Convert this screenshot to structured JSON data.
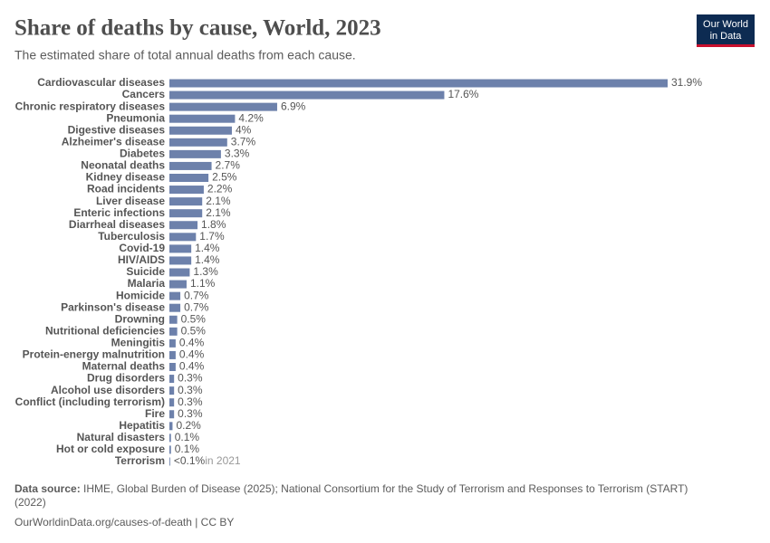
{
  "chart_data": {
    "type": "bar",
    "orientation": "horizontal",
    "title": "Share of deaths by cause, World, 2023",
    "subtitle": "The estimated share of total annual deaths from each cause.",
    "color": "#6d81ab",
    "categories": [
      "Cardiovascular diseases",
      "Cancers",
      "Chronic respiratory diseases",
      "Pneumonia",
      "Digestive diseases",
      "Alzheimer's disease",
      "Diabetes",
      "Neonatal deaths",
      "Kidney disease",
      "Road incidents",
      "Liver disease",
      "Enteric infections",
      "Diarrheal diseases",
      "Tuberculosis",
      "Covid-19",
      "HIV/AIDS",
      "Suicide",
      "Malaria",
      "Homicide",
      "Parkinson's disease",
      "Drowning",
      "Nutritional deficiencies",
      "Meningitis",
      "Protein-energy malnutrition",
      "Maternal deaths",
      "Drug disorders",
      "Alcohol use disorders",
      "Conflict (including terrorism)",
      "Fire",
      "Hepatitis",
      "Natural disasters",
      "Hot or cold exposure",
      "Terrorism"
    ],
    "values": [
      31.9,
      17.6,
      6.9,
      4.2,
      4,
      3.7,
      3.3,
      2.7,
      2.5,
      2.2,
      2.1,
      2.1,
      1.8,
      1.7,
      1.4,
      1.4,
      1.3,
      1.1,
      0.7,
      0.7,
      0.5,
      0.5,
      0.4,
      0.4,
      0.4,
      0.3,
      0.3,
      0.3,
      0.3,
      0.2,
      0.1,
      0.1,
      0.05
    ],
    "value_labels": [
      "31.9%",
      "17.6%",
      "6.9%",
      "4.2%",
      "4%",
      "3.7%",
      "3.3%",
      "2.7%",
      "2.5%",
      "2.2%",
      "2.1%",
      "2.1%",
      "1.8%",
      "1.7%",
      "1.4%",
      "1.4%",
      "1.3%",
      "1.1%",
      "0.7%",
      "0.7%",
      "0.5%",
      "0.5%",
      "0.4%",
      "0.4%",
      "0.4%",
      "0.3%",
      "0.3%",
      "0.3%",
      "0.3%",
      "0.2%",
      "0.1%",
      "0.1%",
      "<0.1%"
    ],
    "annotations": [
      {
        "category": "Terrorism",
        "text": "in 2021"
      }
    ]
  },
  "footer": {
    "source_label": "Data source:",
    "source": "IHME, Global Burden of Disease (2025); National Consortium for the Study of Terrorism and Responses to Terrorism (START)",
    "source_cont": "(2022)",
    "url": "OurWorldinData.org/causes-of-death | CC BY"
  },
  "logo": {
    "line1": "Our World",
    "line2": "in Data"
  }
}
